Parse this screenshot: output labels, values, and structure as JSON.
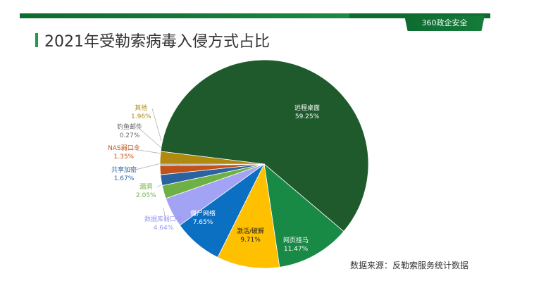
{
  "header": {
    "logo": "360政企安全",
    "title": "2021年受勒索病毒入侵方式占比"
  },
  "source": "数据来源：反勒索服务统计数据",
  "chart_data": {
    "type": "pie",
    "title": "2021年受勒索病毒入侵方式占比",
    "slices": [
      {
        "label": "远程桌面",
        "value": 59.25,
        "pct": "59.25%",
        "color": "#1e5a2b"
      },
      {
        "label": "网页挂马",
        "value": 11.47,
        "pct": "11.47%",
        "color": "#188a46"
      },
      {
        "label": "激活/破解",
        "value": 9.71,
        "pct": "9.71%",
        "color": "#ffc000"
      },
      {
        "label": "僵尸网络",
        "value": 7.65,
        "pct": "7.65%",
        "color": "#0b6fc2"
      },
      {
        "label": "数据库弱口令",
        "value": 4.64,
        "pct": "4.64%",
        "color": "#a3a3f5"
      },
      {
        "label": "漏洞",
        "value": 2.05,
        "pct": "2.05%",
        "color": "#6fb045"
      },
      {
        "label": "共享加密",
        "value": 1.67,
        "pct": "1.67%",
        "color": "#2a64a0"
      },
      {
        "label": "NAS弱口令",
        "value": 1.35,
        "pct": "1.35%",
        "color": "#c3521a"
      },
      {
        "label": "钓鱼邮件",
        "value": 0.27,
        "pct": "0.27%",
        "color": "#8a8a8a"
      },
      {
        "label": "其他",
        "value": 1.96,
        "pct": "1.96%",
        "color": "#b08a10"
      }
    ]
  }
}
